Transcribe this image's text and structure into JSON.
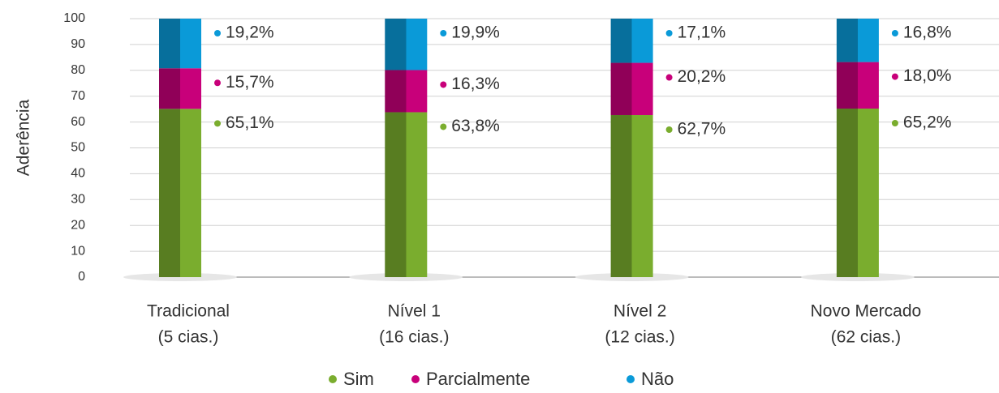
{
  "chart_data": {
    "type": "stacked_bar",
    "y_label": "Aderência",
    "categories": [
      [
        "Tradicional",
        "(5 cias.)"
      ],
      [
        "Nível 1",
        "(16 cias.)"
      ],
      [
        "Nível 2",
        "(12 cias.)"
      ],
      [
        "Novo Mercado",
        "(62 cias.)"
      ]
    ],
    "series": [
      {
        "name": "Sim",
        "color": "#7aad2e",
        "values": [
          65.1,
          63.8,
          62.7,
          65.2
        ],
        "value_labels": [
          "65,1%",
          "63,8%",
          "62,7%",
          "65,2%"
        ]
      },
      {
        "name": "Parcialmente",
        "color": "#c8007a",
        "values": [
          15.7,
          16.3,
          20.2,
          18.0
        ],
        "value_labels": [
          "15,7%",
          "16,3%",
          "20,2%",
          "18,0%"
        ]
      },
      {
        "name": "Não",
        "color": "#0a9ad8",
        "values": [
          19.2,
          19.9,
          17.1,
          16.8
        ],
        "value_labels": [
          "19,2%",
          "19,9%",
          "17,1%",
          "16,8%"
        ]
      }
    ],
    "ylim": [
      0,
      100
    ],
    "yticks": [
      0,
      10,
      20,
      30,
      40,
      50,
      60,
      70,
      80,
      90,
      100
    ],
    "grid": true
  }
}
